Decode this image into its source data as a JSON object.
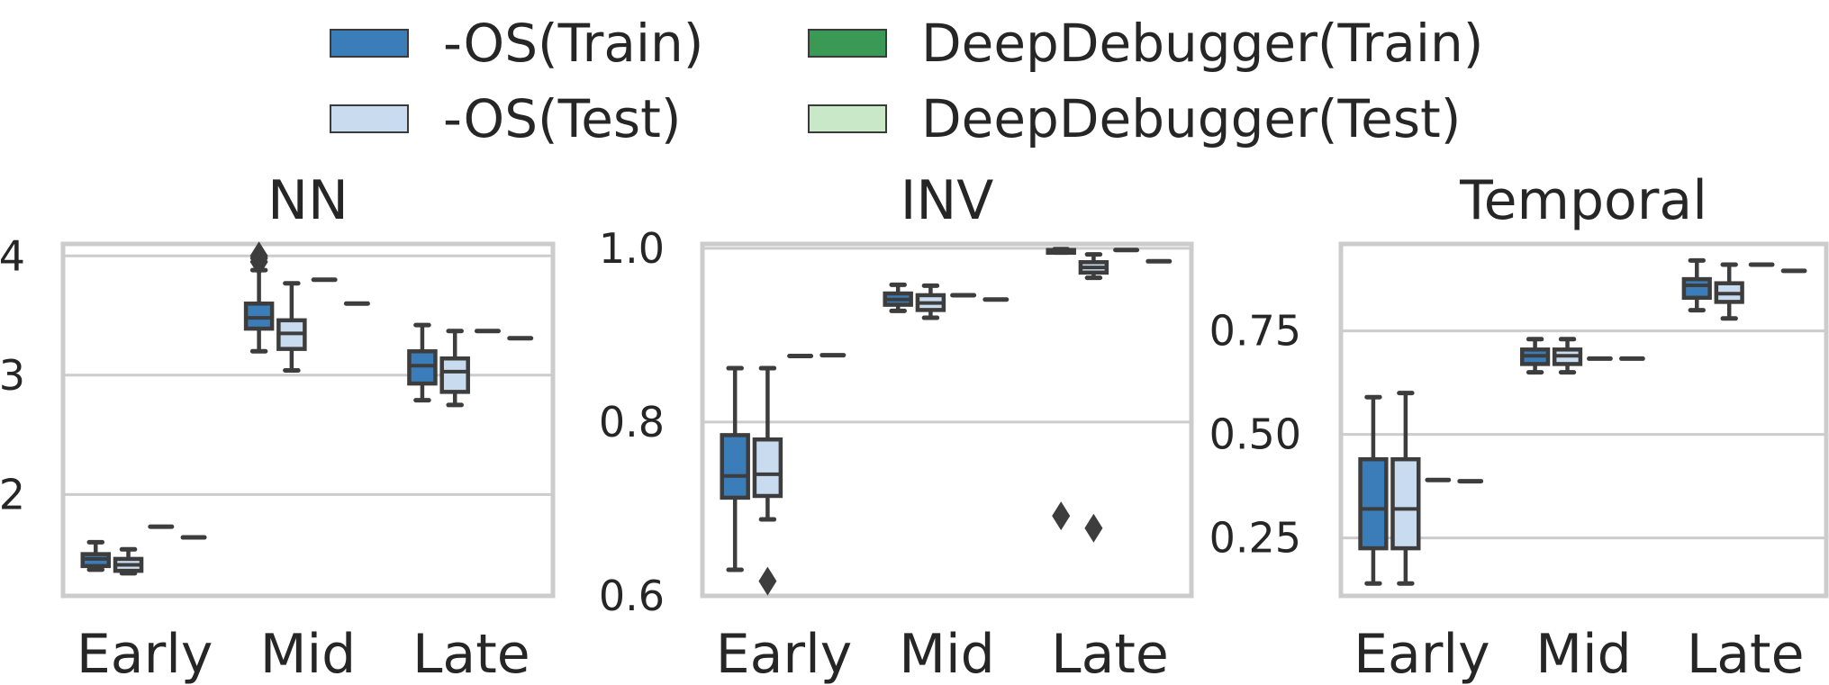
{
  "legend": {
    "items": [
      {
        "label": "-OS(Train)",
        "color": "#3a7db8"
      },
      {
        "label": "-OS(Test)",
        "color": "#c9dbee"
      },
      {
        "label": "DeepDebugger(Train)",
        "color": "#3a9a55"
      },
      {
        "label": "DeepDebugger(Test)",
        "color": "#c9e8c8"
      }
    ]
  },
  "chart_data": [
    {
      "type": "box",
      "title": "NN",
      "xlabel": "",
      "ylabel": "",
      "categories": [
        "Early",
        "Mid",
        "Late"
      ],
      "ylim": [
        1.15,
        4.1
      ],
      "yticks": [
        2,
        3,
        4
      ],
      "grid": true,
      "legend_position": "top-center",
      "series": [
        {
          "name": "-OS(Train)",
          "boxes": [
            {
              "whislo": 1.37,
              "q1": 1.4,
              "med": 1.46,
              "q3": 1.5,
              "whishi": 1.6,
              "fliers": []
            },
            {
              "whislo": 3.2,
              "q1": 3.39,
              "med": 3.48,
              "q3": 3.6,
              "whishi": 3.88,
              "fliers": [
                3.95,
                3.98,
                4.0
              ]
            },
            {
              "whislo": 2.79,
              "q1": 2.93,
              "med": 3.08,
              "q3": 3.2,
              "whishi": 3.42,
              "fliers": []
            }
          ]
        },
        {
          "name": "-OS(Test)",
          "boxes": [
            {
              "whislo": 1.34,
              "q1": 1.36,
              "med": 1.41,
              "q3": 1.46,
              "whishi": 1.54,
              "fliers": []
            },
            {
              "whislo": 3.04,
              "q1": 3.22,
              "med": 3.35,
              "q3": 3.46,
              "whishi": 3.77,
              "fliers": []
            },
            {
              "whislo": 2.75,
              "q1": 2.86,
              "med": 3.03,
              "q3": 3.14,
              "whishi": 3.37,
              "fliers": []
            }
          ]
        },
        {
          "name": "DeepDebugger(Train)",
          "values": [
            1.73,
            3.8,
            3.37
          ]
        },
        {
          "name": "DeepDebugger(Test)",
          "values": [
            1.64,
            3.6,
            3.31
          ]
        }
      ]
    },
    {
      "type": "box",
      "title": "INV",
      "xlabel": "",
      "ylabel": "",
      "categories": [
        "Early",
        "Mid",
        "Late"
      ],
      "ylim": [
        0.6,
        1.005
      ],
      "yticks": [
        0.6,
        0.8,
        1.0
      ],
      "grid": true,
      "legend_position": "top-center",
      "series": [
        {
          "name": "-OS(Train)",
          "boxes": [
            {
              "whislo": 0.63,
              "q1": 0.713,
              "med": 0.738,
              "q3": 0.785,
              "whishi": 0.862,
              "fliers": []
            },
            {
              "whislo": 0.928,
              "q1": 0.935,
              "med": 0.941,
              "q3": 0.948,
              "whishi": 0.958,
              "fliers": []
            },
            {
              "whislo": 0.995,
              "q1": 0.996,
              "med": 0.997,
              "q3": 0.998,
              "whishi": 0.999,
              "fliers": [
                0.692
              ]
            }
          ]
        },
        {
          "name": "-OS(Test)",
          "boxes": [
            {
              "whislo": 0.688,
              "q1": 0.715,
              "med": 0.74,
              "q3": 0.78,
              "whishi": 0.862,
              "fliers": [
                0.617
              ]
            },
            {
              "whislo": 0.92,
              "q1": 0.929,
              "med": 0.937,
              "q3": 0.946,
              "whishi": 0.957,
              "fliers": []
            },
            {
              "whislo": 0.966,
              "q1": 0.972,
              "med": 0.978,
              "q3": 0.984,
              "whishi": 0.993,
              "fliers": [
                0.678
              ]
            }
          ]
        },
        {
          "name": "DeepDebugger(Train)",
          "values": [
            0.876,
            0.946,
            0.998
          ]
        },
        {
          "name": "DeepDebugger(Test)",
          "values": [
            0.877,
            0.941,
            0.985
          ]
        }
      ]
    },
    {
      "type": "box",
      "title": "Temporal",
      "xlabel": "",
      "ylabel": "",
      "categories": [
        "Early",
        "Mid",
        "Late"
      ],
      "ylim": [
        0.11,
        0.96
      ],
      "yticks": [
        0.25,
        0.5,
        0.75
      ],
      "grid": true,
      "legend_position": "top-center",
      "series": [
        {
          "name": "-OS(Train)",
          "boxes": [
            {
              "whislo": 0.14,
              "q1": 0.225,
              "med": 0.32,
              "q3": 0.44,
              "whishi": 0.59,
              "fliers": []
            },
            {
              "whislo": 0.65,
              "q1": 0.67,
              "med": 0.69,
              "q3": 0.705,
              "whishi": 0.73,
              "fliers": []
            },
            {
              "whislo": 0.8,
              "q1": 0.83,
              "med": 0.86,
              "q3": 0.875,
              "whishi": 0.92,
              "fliers": []
            }
          ]
        },
        {
          "name": "-OS(Test)",
          "boxes": [
            {
              "whislo": 0.14,
              "q1": 0.225,
              "med": 0.32,
              "q3": 0.44,
              "whishi": 0.6,
              "fliers": []
            },
            {
              "whislo": 0.65,
              "q1": 0.67,
              "med": 0.69,
              "q3": 0.705,
              "whishi": 0.73,
              "fliers": []
            },
            {
              "whislo": 0.78,
              "q1": 0.82,
              "med": 0.84,
              "q3": 0.865,
              "whishi": 0.91,
              "fliers": []
            }
          ]
        },
        {
          "name": "DeepDebugger(Train)",
          "values": [
            0.39,
            0.683,
            0.91
          ]
        },
        {
          "name": "DeepDebugger(Test)",
          "values": [
            0.387,
            0.683,
            0.895
          ]
        }
      ]
    }
  ]
}
